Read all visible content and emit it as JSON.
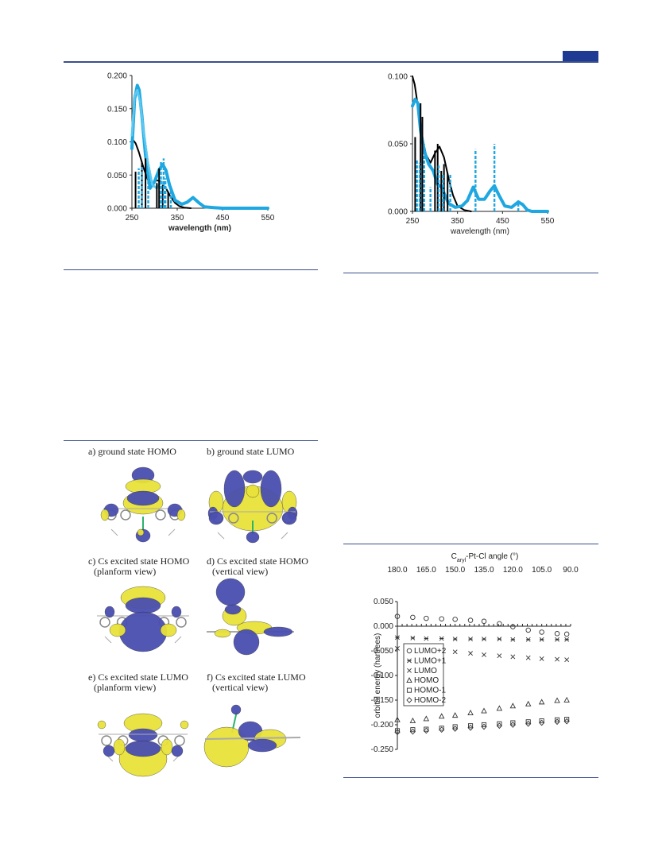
{
  "page": {
    "header_tab_color": "#1f3a93",
    "rule_color": "#3b4f8c"
  },
  "chart_data": [
    {
      "type": "line",
      "xlabel": "wavelength (nm)",
      "ylabel": "",
      "xlim": [
        250,
        550
      ],
      "ylim": [
        0,
        0.2
      ],
      "xticks": [
        "250",
        "350",
        "450",
        "550"
      ],
      "yticks": [
        "0.000",
        "0.050",
        "0.100",
        "0.150",
        "0.200"
      ],
      "series": [
        {
          "style": "solid-black-curve",
          "color": "#000000",
          "x": [
            250,
            258,
            265,
            275,
            285,
            295,
            305,
            315,
            325,
            335,
            345,
            355,
            365,
            380
          ],
          "y": [
            0.105,
            0.098,
            0.085,
            0.062,
            0.043,
            0.038,
            0.042,
            0.04,
            0.03,
            0.018,
            0.008,
            0.003,
            0.001,
            0
          ]
        },
        {
          "style": "thick-blue-curve",
          "color": "#1ea7e1",
          "x": [
            250,
            256,
            262,
            266,
            272,
            280,
            290,
            300,
            310,
            318,
            325,
            333,
            345,
            360,
            372,
            385,
            398,
            410,
            430,
            450,
            550
          ],
          "y": [
            0.09,
            0.165,
            0.185,
            0.178,
            0.14,
            0.08,
            0.03,
            0.04,
            0.058,
            0.066,
            0.057,
            0.035,
            0.012,
            0.006,
            0.009,
            0.016,
            0.008,
            0.002,
            0.001,
            0,
            0
          ]
        },
        {
          "style": "dotted-blue-curve",
          "color": "#5bc8f0",
          "x": [
            250,
            256,
            262,
            268,
            275,
            285,
            295,
            305,
            315,
            325
          ],
          "y": [
            0.11,
            0.17,
            0.178,
            0.16,
            0.12,
            0.07,
            0.035,
            0.03,
            0.04,
            0.03
          ]
        },
        {
          "style": "black-sticks",
          "color": "#000000",
          "x": [
            258,
            272,
            280,
            305,
            310,
            318,
            330
          ],
          "y": [
            0.055,
            0.07,
            0.075,
            0.038,
            0.06,
            0.035,
            0.025
          ]
        },
        {
          "style": "blue-dashed-sticks",
          "color": "#1ea7e1",
          "x": [
            265,
            272,
            286,
            314,
            320,
            324,
            336
          ],
          "y": [
            0.06,
            0.065,
            0.045,
            0.07,
            0.075,
            0.045,
            0.03
          ]
        }
      ]
    },
    {
      "type": "line",
      "xlabel": "wavelength (nm)",
      "ylabel": "",
      "xlim": [
        250,
        550
      ],
      "ylim": [
        0,
        0.1
      ],
      "xticks": [
        "250",
        "350",
        "450",
        "550"
      ],
      "yticks": [
        "0.000",
        "0.050",
        "0.100"
      ],
      "series": [
        {
          "style": "solid-black-curve",
          "color": "#000000",
          "x": [
            250,
            255,
            262,
            270,
            280,
            290,
            300,
            310,
            320,
            330,
            340,
            350,
            365,
            380
          ],
          "y": [
            0.1,
            0.094,
            0.078,
            0.058,
            0.042,
            0.036,
            0.043,
            0.048,
            0.04,
            0.025,
            0.012,
            0.004,
            0.001,
            0
          ]
        },
        {
          "style": "thick-blue-curve",
          "color": "#1ea7e1",
          "x": [
            250,
            256,
            262,
            268,
            276,
            286,
            296,
            306,
            314,
            322,
            330,
            345,
            360,
            372,
            385,
            397,
            410,
            422,
            432,
            442,
            455,
            470,
            485,
            495,
            505,
            515,
            550
          ],
          "y": [
            0.078,
            0.083,
            0.08,
            0.06,
            0.045,
            0.035,
            0.03,
            0.02,
            0.018,
            0.012,
            0.006,
            0.003,
            0.004,
            0.008,
            0.018,
            0.009,
            0.009,
            0.015,
            0.019,
            0.012,
            0.004,
            0.003,
            0.007,
            0.005,
            0.001,
            0,
            0
          ]
        },
        {
          "style": "black-sticks",
          "color": "#000000",
          "x": [
            256,
            268,
            272,
            300,
            306,
            314,
            320,
            328
          ],
          "y": [
            0.055,
            0.08,
            0.07,
            0.045,
            0.05,
            0.03,
            0.035,
            0.028
          ]
        },
        {
          "style": "blue-dashed-sticks",
          "color": "#1ea7e1",
          "x": [
            260,
            266,
            276,
            290,
            308,
            318,
            334,
            390,
            432,
            485
          ],
          "y": [
            0.038,
            0.036,
            0.05,
            0.018,
            0.034,
            0.028,
            0.028,
            0.046,
            0.05,
            0.008
          ]
        }
      ]
    },
    {
      "type": "scatter",
      "title": "",
      "top_axis_label_main": "C",
      "top_axis_label_sub": "aryl",
      "top_axis_label_rest": "-Pt-Cl angle (°)",
      "ylabel": "orbital energy (hartrees)",
      "xlim": [
        180,
        90
      ],
      "ylim": [
        -0.25,
        0.05
      ],
      "xticks": [
        "180.0",
        "165.0",
        "150.0",
        "135.0",
        "120.0",
        "105.0",
        "90.0"
      ],
      "yticks": [
        "0.050",
        "0.000",
        "-0.050",
        "-0.100",
        "-0.150",
        "-0.200",
        "-0.250"
      ],
      "x": [
        180,
        172,
        165,
        157,
        150,
        142,
        135,
        127,
        120,
        112,
        105,
        97,
        92
      ],
      "series": [
        {
          "name": "LUMO+2",
          "marker": "circle",
          "values": [
            0.02,
            0.018,
            0.016,
            0.015,
            0.014,
            0.012,
            0.01,
            0.005,
            -0.001,
            -0.008,
            -0.012,
            -0.015,
            -0.016
          ]
        },
        {
          "name": "LUMO+1",
          "marker": "star",
          "values": [
            -0.023,
            -0.024,
            -0.025,
            -0.025,
            -0.026,
            -0.026,
            -0.026,
            -0.026,
            -0.027,
            -0.027,
            -0.027,
            -0.027,
            -0.027
          ]
        },
        {
          "name": "LUMO",
          "marker": "x",
          "values": [
            -0.045,
            -0.046,
            -0.047,
            -0.05,
            -0.052,
            -0.055,
            -0.058,
            -0.06,
            -0.062,
            -0.064,
            -0.066,
            -0.067,
            -0.068
          ]
        },
        {
          "name": "HOMO",
          "marker": "triangle",
          "values": [
            -0.19,
            -0.192,
            -0.188,
            -0.183,
            -0.181,
            -0.176,
            -0.172,
            -0.167,
            -0.162,
            -0.158,
            -0.154,
            -0.151,
            -0.15
          ]
        },
        {
          "name": "HOMO-1",
          "marker": "square",
          "values": [
            -0.212,
            -0.21,
            -0.209,
            -0.207,
            -0.204,
            -0.202,
            -0.2,
            -0.198,
            -0.196,
            -0.194,
            -0.192,
            -0.19,
            -0.189
          ]
        },
        {
          "name": "HOMO-2",
          "marker": "diamond",
          "values": [
            -0.215,
            -0.214,
            -0.212,
            -0.21,
            -0.208,
            -0.206,
            -0.204,
            -0.202,
            -0.2,
            -0.198,
            -0.196,
            -0.194,
            -0.193
          ]
        }
      ],
      "legend_labels": [
        "LUMO+2",
        "LUMO+1",
        "LUMO",
        "HOMO",
        "HOMO-1",
        "HOMO-2"
      ],
      "legend_position": "left"
    }
  ],
  "orbitals": {
    "panels": [
      {
        "title": [
          "a) ground state HOMO"
        ]
      },
      {
        "title": [
          "b) ground state LUMO"
        ]
      },
      {
        "title": [
          "c) Cs excited state HOMO",
          "(planform view)"
        ]
      },
      {
        "title": [
          "d) Cs excited state HOMO",
          "(vertical view)"
        ]
      },
      {
        "title": [
          "e) Cs excited state LUMO",
          "(planform view)"
        ]
      },
      {
        "title": [
          "f) Cs excited state LUMO",
          "(vertical view)"
        ]
      }
    ],
    "lobe_colors": {
      "positive": "#e8e23a",
      "negative": "#4a4fb0",
      "bond": "#2bb36b"
    }
  }
}
